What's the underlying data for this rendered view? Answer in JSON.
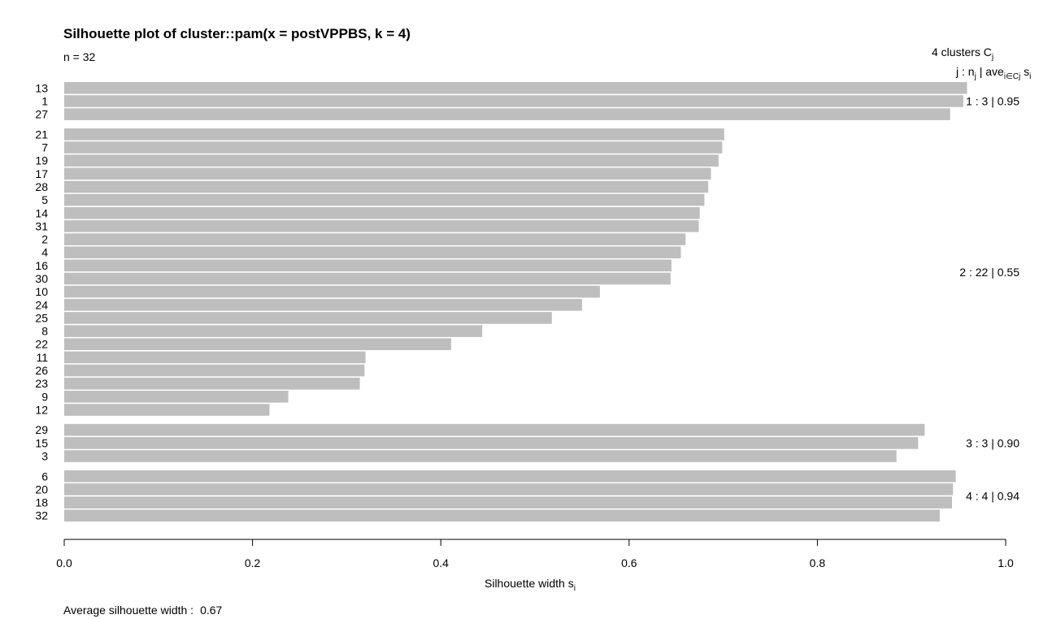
{
  "chart_data": {
    "type": "bar",
    "orientation": "horizontal",
    "title": "Silhouette plot of cluster::pam(x = postVPPBS, k = 4)",
    "n_label": "n = 32",
    "xlabel": "Silhouette width s",
    "xlabel_sub": "i",
    "xlim": [
      0,
      1
    ],
    "x_ticks": [
      "0.0",
      "0.2",
      "0.4",
      "0.6",
      "0.8",
      "1.0"
    ],
    "grid": false,
    "bar_color": "#bebebe",
    "average_label": "Average silhouette width :",
    "average_value": "0.67",
    "legend_header": {
      "line1_a": "4  clusters  C",
      "line1_sub": "j",
      "line2_a": "j :  n",
      "line2_sub1": "j",
      "line2_b": " | ave",
      "line2_sub2": "i∈Cj",
      "line2_c": " s",
      "line2_sub3": "i"
    },
    "clusters": [
      {
        "label": "1 :   3  |  0.95",
        "members": [
          {
            "id": "13",
            "value": 0.959
          },
          {
            "id": "1",
            "value": 0.955
          },
          {
            "id": "27",
            "value": 0.941
          }
        ]
      },
      {
        "label": "2 :   22  |  0.55",
        "members": [
          {
            "id": "21",
            "value": 0.701
          },
          {
            "id": "7",
            "value": 0.699
          },
          {
            "id": "19",
            "value": 0.695
          },
          {
            "id": "17",
            "value": 0.687
          },
          {
            "id": "28",
            "value": 0.684
          },
          {
            "id": "5",
            "value": 0.68
          },
          {
            "id": "14",
            "value": 0.675
          },
          {
            "id": "31",
            "value": 0.674
          },
          {
            "id": "2",
            "value": 0.66
          },
          {
            "id": "4",
            "value": 0.655
          },
          {
            "id": "16",
            "value": 0.645
          },
          {
            "id": "30",
            "value": 0.644
          },
          {
            "id": "10",
            "value": 0.569
          },
          {
            "id": "24",
            "value": 0.55
          },
          {
            "id": "25",
            "value": 0.518
          },
          {
            "id": "8",
            "value": 0.444
          },
          {
            "id": "22",
            "value": 0.411
          },
          {
            "id": "11",
            "value": 0.32
          },
          {
            "id": "26",
            "value": 0.319
          },
          {
            "id": "23",
            "value": 0.314
          },
          {
            "id": "9",
            "value": 0.238
          },
          {
            "id": "12",
            "value": 0.218
          }
        ]
      },
      {
        "label": "3 :   3  |  0.90",
        "members": [
          {
            "id": "29",
            "value": 0.914
          },
          {
            "id": "15",
            "value": 0.907
          },
          {
            "id": "3",
            "value": 0.884
          }
        ]
      },
      {
        "label": "4 :   4  |  0.94",
        "members": [
          {
            "id": "6",
            "value": 0.947
          },
          {
            "id": "20",
            "value": 0.944
          },
          {
            "id": "18",
            "value": 0.943
          },
          {
            "id": "32",
            "value": 0.93
          }
        ]
      }
    ]
  }
}
